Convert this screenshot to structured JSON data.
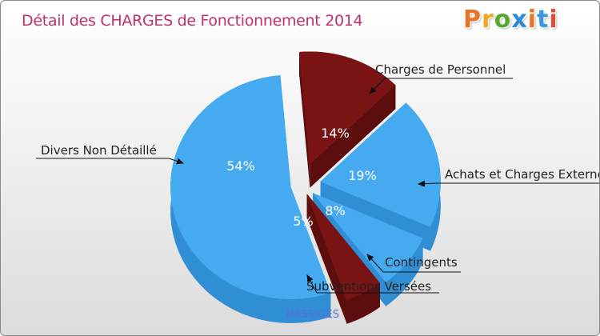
{
  "header": {
    "title": "Détail des CHARGES de Fonctionnement 2014"
  },
  "logo": {
    "text": "Proxiti",
    "colors": [
      "#e8742a",
      "#f2a81d",
      "#5aa82e",
      "#2e8bd8",
      "#e8742a",
      "#3a9ad9",
      "#e04a3a"
    ]
  },
  "footer": {
    "commune": "MASSIGES"
  },
  "chart_data": {
    "type": "pie",
    "title": "Détail des CHARGES de Fonctionnement 2014",
    "exploded": true,
    "slices": [
      {
        "label": "Charges de Personnel",
        "value": 14,
        "pct_label": "14%",
        "color": "#7a1414",
        "side": "#5c0d0d"
      },
      {
        "label": "Achats et Charges Externes",
        "value": 19,
        "pct_label": "19%",
        "color": "#45aaf0",
        "side": "#2f8ed4"
      },
      {
        "label": "Contingents",
        "value": 8,
        "pct_label": "8%",
        "color": "#45aaf0",
        "side": "#2f8ed4"
      },
      {
        "label": "Subventions Versées",
        "value": 5,
        "pct_label": "5%",
        "color": "#7a1414",
        "side": "#5c0d0d"
      },
      {
        "label": "Divers Non Détaillé",
        "value": 54,
        "pct_label": "54%",
        "color": "#45aaf0",
        "side": "#2f8ed4"
      }
    ]
  }
}
